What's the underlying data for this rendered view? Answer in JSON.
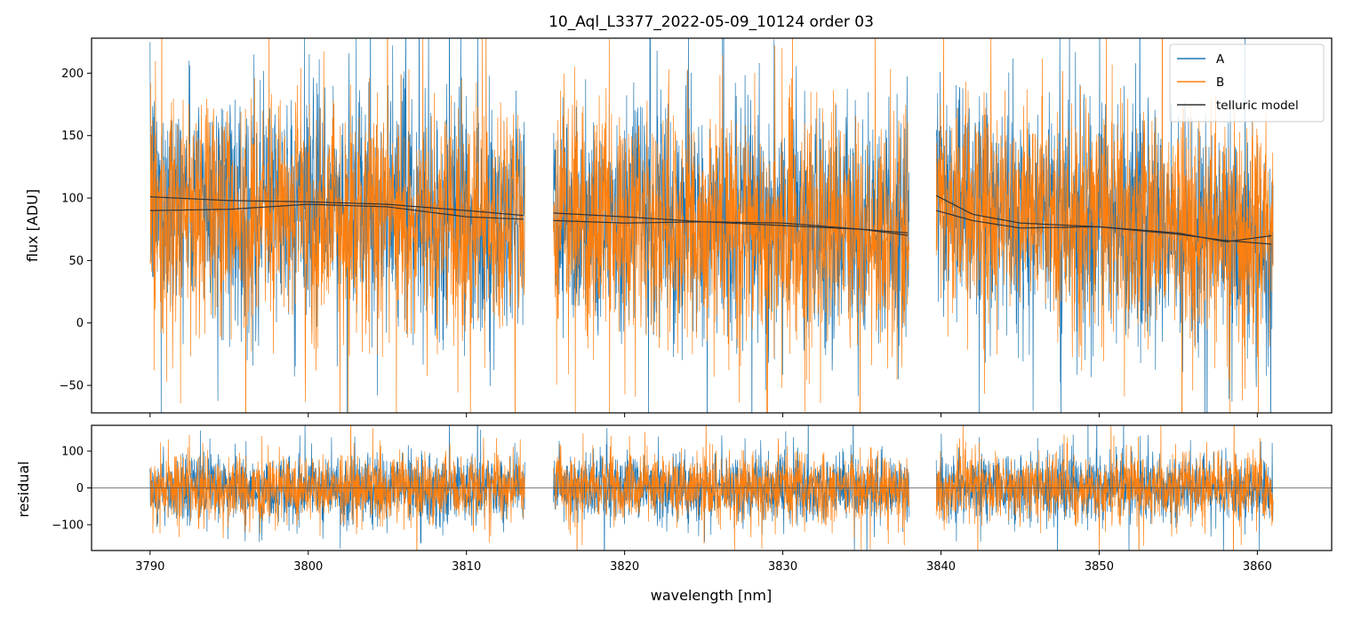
{
  "chart_data": {
    "type": "line",
    "title": "10_Aql_L3377_2022-05-09_10124  order 03",
    "xlabel": "wavelength [nm]",
    "xlim": [
      3786.3,
      3864.7
    ],
    "xticks": [
      "3790",
      "3800",
      "3810",
      "3820",
      "3830",
      "3840",
      "3850",
      "3860"
    ],
    "segments": [
      [
        3790.0,
        3813.7
      ],
      [
        3815.5,
        3838.0
      ],
      [
        3839.7,
        3861.0
      ]
    ],
    "colors": {
      "A": "#1f77b4",
      "B": "#ff7f0e",
      "model": "#333333"
    },
    "legend": {
      "placement": "top-right",
      "entries": [
        "A",
        "B",
        "telluric model"
      ]
    },
    "panels": [
      {
        "name": "flux",
        "ylabel": "flux [ADU]",
        "ylim": [
          -72,
          228
        ],
        "yticks": [
          "200",
          "150",
          "100",
          "50",
          "0",
          "−50"
        ],
        "series": [
          {
            "name": "A",
            "mean": [
              [
                3790,
                100
              ],
              [
                3813.7,
                86
              ],
              [
                3815.5,
                88
              ],
              [
                3838,
                72
              ],
              [
                3839.7,
                102
              ],
              [
                3861,
                63
              ]
            ],
            "spread": 45
          },
          {
            "name": "B",
            "mean": [
              [
                3790,
                90
              ],
              [
                3813.7,
                83
              ],
              [
                3815.5,
                82
              ],
              [
                3838,
                70
              ],
              [
                3839.7,
                90
              ],
              [
                3861,
                70
              ]
            ],
            "spread": 45
          },
          {
            "name": "telluric model",
            "curves": [
              [
                [
                  3790,
                  101
                ],
                [
                  3795,
                  98
                ],
                [
                  3800,
                  97
                ],
                [
                  3805,
                  95
                ],
                [
                  3810,
                  90
                ],
                [
                  3813.7,
                  86
                ],
                [
                  3815.5,
                  88
                ],
                [
                  3820,
                  85
                ],
                [
                  3825,
                  81
                ],
                [
                  3830,
                  78
                ],
                [
                  3835,
                  75
                ],
                [
                  3838,
                  72
                ],
                [
                  3839.7,
                  102
                ],
                [
                  3842,
                  87
                ],
                [
                  3845,
                  80
                ],
                [
                  3850,
                  77
                ],
                [
                  3855,
                  71
                ],
                [
                  3858,
                  66
                ],
                [
                  3861,
                  63
                ]
              ],
              [
                [
                  3790,
                  90
                ],
                [
                  3795,
                  91
                ],
                [
                  3800,
                  95
                ],
                [
                  3805,
                  93
                ],
                [
                  3810,
                  85
                ],
                [
                  3813.7,
                  83
                ],
                [
                  3815.5,
                  82
                ],
                [
                  3820,
                  80
                ],
                [
                  3825,
                  81
                ],
                [
                  3830,
                  80
                ],
                [
                  3835,
                  75
                ],
                [
                  3838,
                  70
                ],
                [
                  3839.7,
                  90
                ],
                [
                  3842,
                  82
                ],
                [
                  3845,
                  76
                ],
                [
                  3850,
                  77
                ],
                [
                  3855,
                  72
                ],
                [
                  3858,
                  65
                ],
                [
                  3861,
                  70
                ]
              ]
            ]
          }
        ]
      },
      {
        "name": "residual",
        "ylabel": "residual",
        "ylim": [
          -170,
          170
        ],
        "yticks": [
          "100",
          "0",
          "−100"
        ],
        "series": [
          {
            "name": "A",
            "mean": 0,
            "spread": 45
          },
          {
            "name": "B",
            "mean": 0,
            "spread": 45
          }
        ],
        "zero_line": 0
      }
    ]
  }
}
